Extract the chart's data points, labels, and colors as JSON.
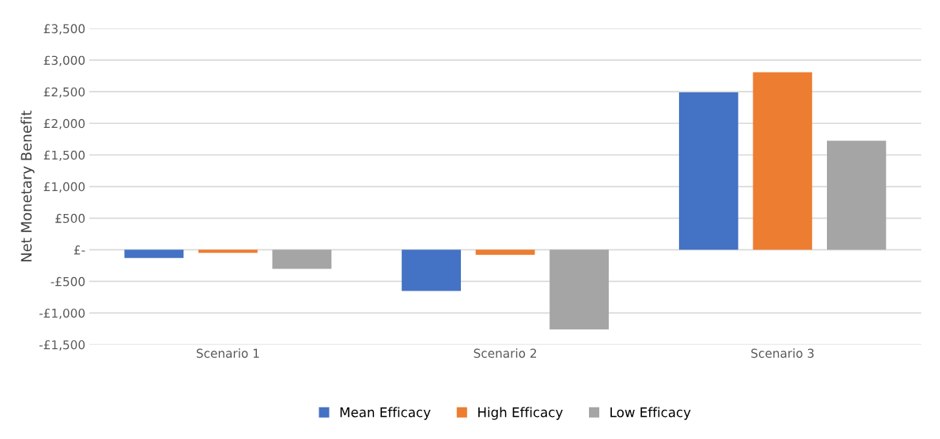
{
  "chart_data": {
    "type": "bar",
    "ylabel": "Net Monetary Benefit",
    "categories": [
      "Scenario 1",
      "Scenario 2",
      "Scenario 3"
    ],
    "series": [
      {
        "name": "Mean Efficacy",
        "color": "#4472c4",
        "values": [
          -130,
          -650,
          2490
        ]
      },
      {
        "name": "High Efficacy",
        "color": "#ed7d31",
        "values": [
          -50,
          -80,
          2810
        ]
      },
      {
        "name": "Low Efficacy",
        "color": "#a5a5a5",
        "values": [
          -300,
          -1260,
          1725
        ]
      }
    ],
    "ylim": [
      -1500,
      3500
    ],
    "yticks": [
      {
        "value": -1500,
        "label": "-£1,500"
      },
      {
        "value": -1000,
        "label": "-£1,000"
      },
      {
        "value": -500,
        "label": "-£500"
      },
      {
        "value": 0,
        "label": "£-"
      },
      {
        "value": 500,
        "label": "£500"
      },
      {
        "value": 1000,
        "label": "£1,000"
      },
      {
        "value": 1500,
        "label": "£1,500"
      },
      {
        "value": 2000,
        "label": "£2,000"
      },
      {
        "value": 2500,
        "label": "£2,500"
      },
      {
        "value": 3000,
        "label": "£3,000"
      },
      {
        "value": 3500,
        "label": "£3,500"
      }
    ],
    "grid": "y",
    "legend": "bottom"
  }
}
